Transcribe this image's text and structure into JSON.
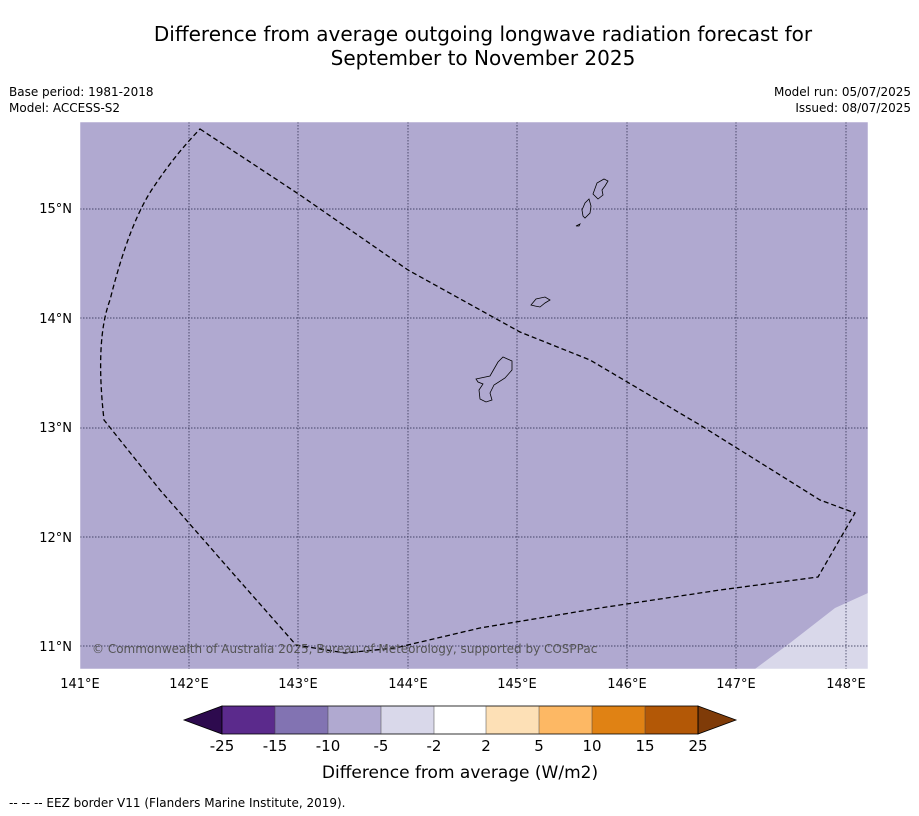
{
  "header": {
    "title_line1": "Difference from average outgoing longwave radiation forecast for",
    "title_line2": "September to November 2025",
    "base_period": "Base period: 1981-2018",
    "model": "Model: ACCESS-S2",
    "model_run": "Model run: 05/07/2025",
    "issued": "Issued: 08/07/2025"
  },
  "map": {
    "lat_labels": [
      "15°N",
      "14°N",
      "13°N",
      "12°N",
      "11°N"
    ],
    "lon_labels": [
      "141°E",
      "142°E",
      "143°E",
      "144°E",
      "145°E",
      "146°E",
      "147°E",
      "148°E"
    ],
    "copyright": "© Commonwealth of Australia 2025, Bureau of Meteorology, supported by COSPPac",
    "colors": {
      "main_fill": "#b0a9d0",
      "secondary_fill": "#d9d8ea",
      "grid": "#222244"
    }
  },
  "colorbar": {
    "ticks": [
      "-25",
      "-15",
      "-10",
      "-5",
      "-2",
      "2",
      "5",
      "10",
      "15",
      "25"
    ],
    "colors": [
      "#2d0a4e",
      "#5b2a8c",
      "#8273b2",
      "#b0a9d0",
      "#d9d8ea",
      "#ffffff",
      "#fde0b6",
      "#fdb864",
      "#e08214",
      "#b35806",
      "#7f3b08"
    ],
    "label": "Difference from average (W/m2)"
  },
  "footer": {
    "legend": "--  --  -- EEZ border V11 (Flanders Marine Institute, 2019)."
  }
}
